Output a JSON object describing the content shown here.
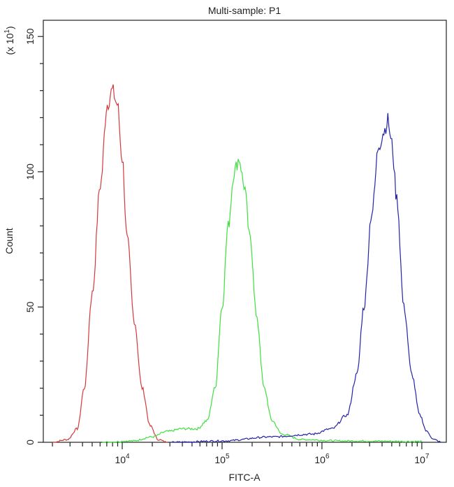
{
  "chart_data": {
    "type": "line",
    "title": "Multi-sample: P1",
    "xlabel": "FITC-A",
    "ylabel": "Count",
    "y_multiplier": "(x 10",
    "y_multiplier_exp": "1",
    "y_multiplier_close": ")",
    "x_scale": "log",
    "xlim": [
      1620,
      17600000
    ],
    "ylim": [
      0,
      156
    ],
    "x_ticks": [
      {
        "value": 10000,
        "base": "10",
        "exp": "4"
      },
      {
        "value": 100000,
        "base": "10",
        "exp": "5"
      },
      {
        "value": 1000000,
        "base": "10",
        "exp": "6"
      },
      {
        "value": 10000000,
        "base": "10",
        "exp": "7"
      }
    ],
    "y_ticks": [
      {
        "value": 0,
        "label": "0"
      },
      {
        "value": 50,
        "label": "50"
      },
      {
        "value": 100,
        "label": "100"
      },
      {
        "value": 150,
        "label": "150"
      }
    ],
    "grid": false,
    "legend": "none",
    "series": [
      {
        "color": "#d23a3a",
        "x": [
          2000,
          2820,
          3550,
          4170,
          5010,
          6030,
          7080,
          7940,
          8910,
          10000,
          11200,
          13200,
          15800,
          19100,
          22900,
          28200
        ],
        "y": [
          0,
          1,
          5,
          20,
          55,
          95,
          125,
          130,
          125,
          105,
          75,
          45,
          20,
          6,
          1,
          0
        ]
      },
      {
        "color": "#3ee03e",
        "x": [
          6310,
          12600,
          20000,
          28200,
          39800,
          56200,
          70800,
          85100,
          100000,
          115000,
          132000,
          148000,
          166000,
          191000,
          224000,
          263000,
          316000,
          398000,
          631000,
          1580000,
          10000000
        ],
        "y": [
          0,
          0.5,
          2,
          4,
          5,
          5,
          8,
          20,
          50,
          80,
          100,
          105,
          95,
          75,
          45,
          20,
          8,
          3,
          1,
          0.5,
          0.3
        ]
      },
      {
        "color": "#2424a8",
        "x": [
          31600,
          100000,
          316000,
          794000,
          1260000,
          1780000,
          2240000,
          2630000,
          3160000,
          3720000,
          4170000,
          4570000,
          5010000,
          5620000,
          6610000,
          7940000,
          9550000,
          11200000,
          13200000,
          15800000
        ],
        "y": [
          0,
          0.5,
          2,
          3,
          5,
          10,
          25,
          50,
          85,
          110,
          115,
          119,
          110,
          90,
          50,
          25,
          10,
          4,
          1,
          0
        ]
      }
    ]
  }
}
